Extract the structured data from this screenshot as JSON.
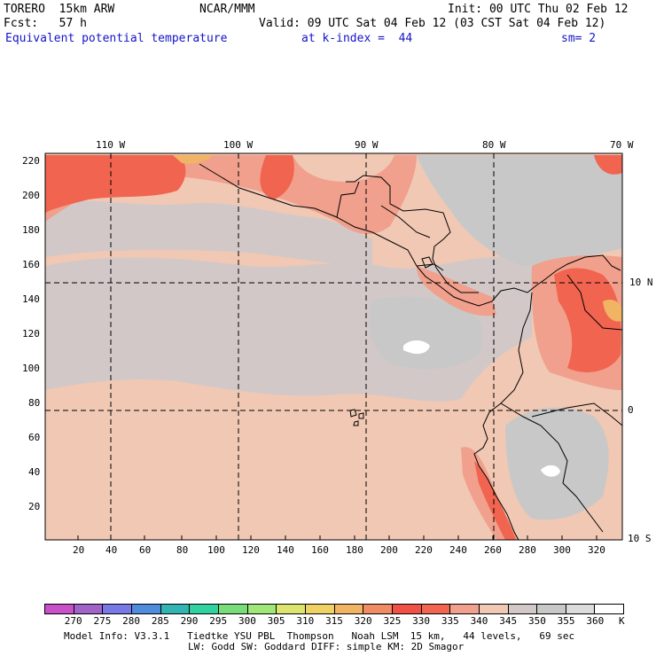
{
  "header": {
    "model": "TORERO  15km ARW",
    "center": "NCAR/MMM",
    "init": "Init: 00 UTC Thu 02 Feb 12",
    "fcst": "Fcst:   57 h",
    "valid": "Valid: 09 UTC Sat 04 Feb 12 (03 CST Sat 04 Feb 12)",
    "field": "Equivalent potential temperature",
    "level": "at k-index =  44",
    "smooth": "sm= 2"
  },
  "axes": {
    "x_ticks": [
      "20",
      "40",
      "60",
      "80",
      "100",
      "120",
      "140",
      "160",
      "180",
      "200",
      "220",
      "240",
      "260",
      "280",
      "300",
      "320"
    ],
    "y_ticks": [
      "220",
      "200",
      "180",
      "160",
      "140",
      "120",
      "100",
      "80",
      "60",
      "40",
      "20"
    ],
    "lon_labels": [
      "110 W",
      "100 W",
      "90 W",
      "80 W",
      "70 W"
    ],
    "lat_labels": [
      "10 N",
      "0",
      "10 S"
    ]
  },
  "colorbar": {
    "unit": "K",
    "labels": [
      "270",
      "275",
      "280",
      "285",
      "290",
      "295",
      "300",
      "305",
      "310",
      "315",
      "320",
      "325",
      "330",
      "335",
      "340",
      "345",
      "350",
      "355",
      "360"
    ],
    "colors": [
      "#c850c8",
      "#a064c8",
      "#7878e6",
      "#508cdc",
      "#32b4b4",
      "#32d2a0",
      "#78dc78",
      "#a0e678",
      "#dce66e",
      "#f0d264",
      "#f0b464",
      "#f08c64",
      "#f05046",
      "#f06450",
      "#f0a08c",
      "#f0c8b4",
      "#d2c8c8",
      "#c8c8c8",
      "#dcdcdc",
      "#ffffff"
    ]
  },
  "footer": {
    "line1": "Model Info: V3.3.1   Tiedtke YSU PBL  Thompson   Noah LSM  15 km,   44 levels,   69 sec",
    "line2": "LW: Godd SW: Goddard DIFF: simple KM: 2D Smagor"
  },
  "map_colors": {
    "base": "#f0c8b4",
    "gray": "#d2c8c8",
    "lightgray": "#c8c8c8",
    "salmon": "#f0a08c",
    "red": "#f06450",
    "orange": "#f0b464",
    "white": "#ffffff"
  }
}
